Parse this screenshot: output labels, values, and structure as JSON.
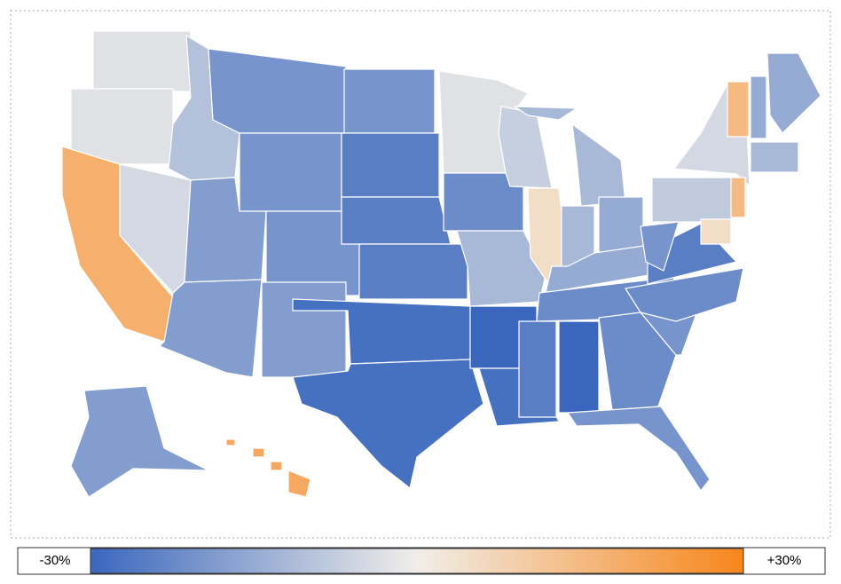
{
  "map": {
    "scale": {
      "min": {
        "value": -30,
        "label": "-30%"
      },
      "max": {
        "value": 30,
        "label": "+30%"
      },
      "colors": [
        "#3a67bd",
        "#f1eee9",
        "#f7861b"
      ]
    },
    "values": [
      -3,
      -3,
      18,
      -5,
      -10,
      -20,
      -20,
      -18,
      -20,
      -18,
      -18,
      -20,
      -25,
      -25,
      -25,
      -28,
      -28,
      -3,
      -22,
      -12,
      -30,
      -28,
      -7,
      5,
      -12,
      -12,
      -15,
      -15,
      -22,
      -25,
      -30,
      -22,
      -20,
      -20,
      -22,
      -25,
      -20,
      -8,
      -5,
      15,
      15,
      -15,
      -15,
      -12,
      5,
      -18,
      20,
      25
    ]
  }
}
